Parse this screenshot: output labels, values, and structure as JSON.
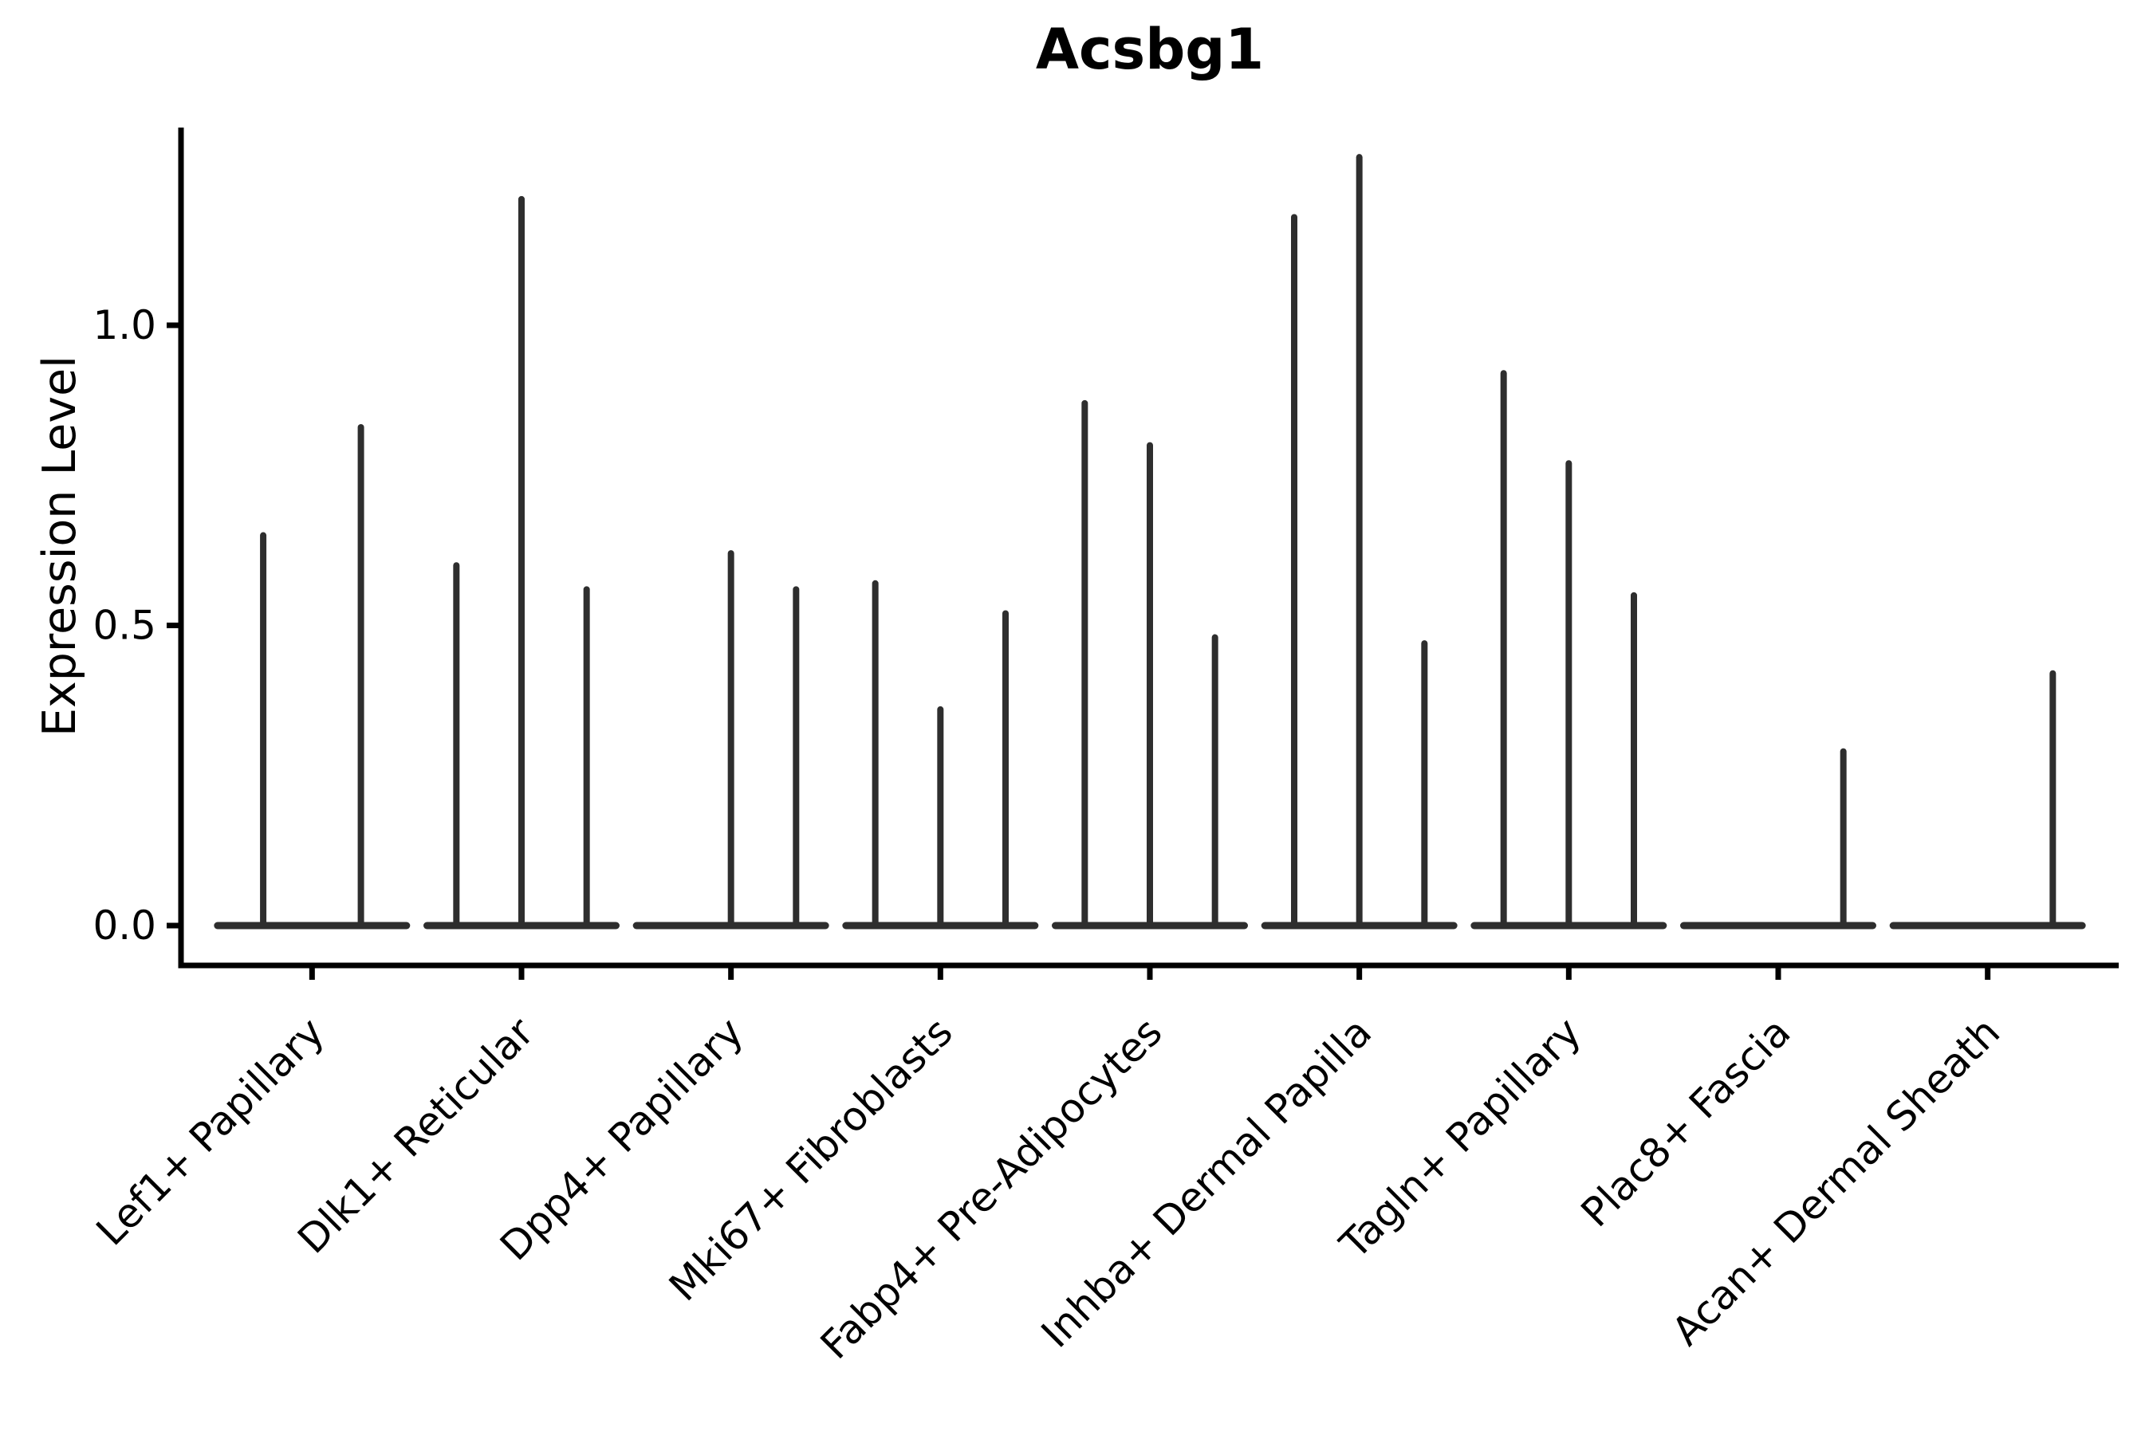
{
  "chart_data": {
    "type": "violin",
    "title": "Acsbg1",
    "ylabel": "Expression Level",
    "xlabel": "",
    "yticks": [
      0.0,
      0.5,
      1.0
    ],
    "ytick_labels": [
      "0.0",
      "0.5",
      "1.0"
    ],
    "ylim": [
      0,
      1.33
    ],
    "legend": "none",
    "grid": "off",
    "style_note": "Seurat-style violin plot; each category holds thin spike-like violins (most cells at 0) drawn as a flat baseline at 0 with narrow vertical spikes up to max expression",
    "categories": [
      {
        "label": "Lef1+ Papillary",
        "group_values": [
          0.65,
          0.83
        ]
      },
      {
        "label": "Dlk1+ Reticular",
        "group_values": [
          0.6,
          1.21,
          0.56
        ]
      },
      {
        "label": "Dpp4+ Papillary",
        "group_values": [
          0,
          0.62,
          0.56
        ]
      },
      {
        "label": "Mki67+ Fibroblasts",
        "group_values": [
          0.57,
          0.36,
          0.52
        ]
      },
      {
        "label": "Fabp4+ Pre-Adipocytes",
        "group_values": [
          0.87,
          0.8,
          0.48
        ]
      },
      {
        "label": "Inhba+ Dermal Papilla",
        "group_values": [
          1.18,
          1.28,
          0.47
        ]
      },
      {
        "label": "Tagln+ Papillary",
        "group_values": [
          0.92,
          0.77,
          0.55
        ]
      },
      {
        "label": "Plac8+ Fascia",
        "group_values": [
          0,
          0,
          0.29
        ]
      },
      {
        "label": "Acan+ Dermal Sheath",
        "group_values": [
          0,
          0,
          0.42
        ]
      }
    ],
    "colors": {
      "violin": "#2e2e2e",
      "axis": "#000000",
      "text": "#000000",
      "background": "#ffffff"
    }
  }
}
